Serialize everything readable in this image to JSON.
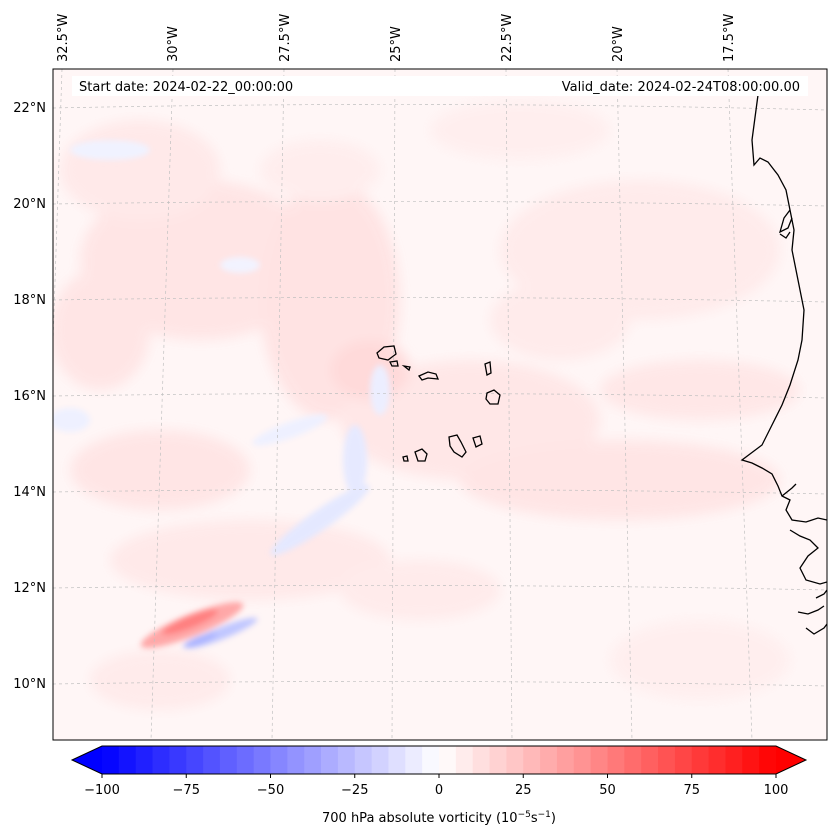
{
  "map": {
    "start_date_label": "Start date: 2024-02-22_00:00:00",
    "valid_date_label": "Valid_date: 2024-02-24T08:00:00.00",
    "longitude_labels": [
      "32.5°W",
      "30°W",
      "27.5°W",
      "25°W",
      "22.5°W",
      "20°W",
      "17.5°W"
    ],
    "latitude_labels": [
      "22°N",
      "20°N",
      "18°N",
      "16°N",
      "14°N",
      "12°N",
      "10°N"
    ],
    "field": "700 hPa absolute vorticity",
    "colors": {
      "negative_max": "#0000ff",
      "neutral": "#ffffff",
      "positive_max": "#ff0000",
      "background_tint": "#fff6f6",
      "coast": "#000000",
      "grid": "#b0b0b0"
    }
  },
  "colorbar": {
    "ticks": [
      "−100",
      "−75",
      "−50",
      "−25",
      "0",
      "25",
      "50",
      "75",
      "100"
    ],
    "label_prefix": "700 hPa absolute vorticity (10",
    "label_exp1": "−5",
    "label_mid": "s",
    "label_exp2": "−1",
    "label_suffix": ")",
    "vmin": -100,
    "vmax": 100,
    "levels": 41
  }
}
